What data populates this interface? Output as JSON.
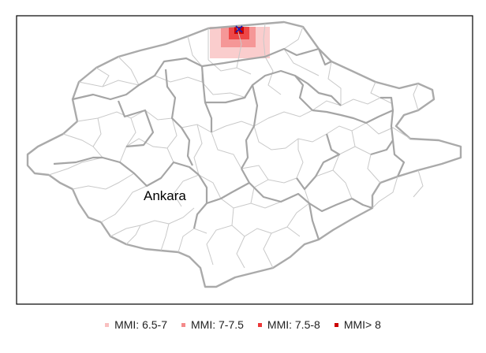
{
  "map": {
    "city_label": "Ankara",
    "colors": {
      "outline": "#aaaaaa",
      "district": "#c9c9c9",
      "province": "#a5a5a5",
      "frame": "#000000",
      "epicenter_marker": "#1a1ab4"
    },
    "marker_icon": "x-cross"
  },
  "legend": {
    "items": [
      {
        "label": "MMI: 6.5-7",
        "color": "#f9c0c0"
      },
      {
        "label": "MMI: 7-7.5",
        "color": "#f48a8a"
      },
      {
        "label": "MMI: 7.5-8",
        "color": "#ec3838"
      },
      {
        "label": "MMI> 8",
        "color": "#cc0000"
      }
    ]
  }
}
